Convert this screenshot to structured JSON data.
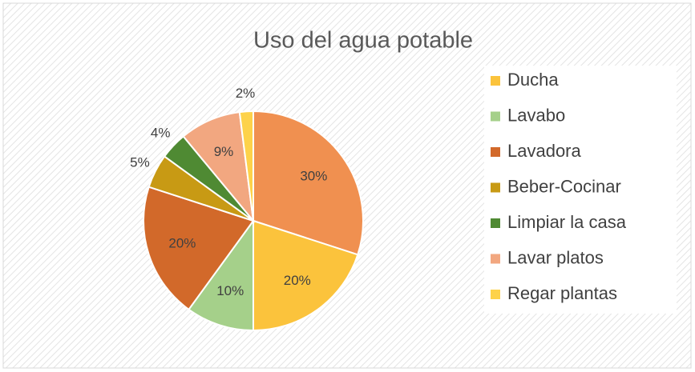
{
  "chart_data": {
    "type": "pie",
    "title": "Uso del agua potable",
    "categories": [
      null,
      "Ducha",
      "Lavabo",
      "Lavadora",
      "Beber-Cocinar",
      "Limpiar la casa",
      "Lavar platos",
      "Regar plantas"
    ],
    "values": [
      30,
      20,
      10,
      20,
      5,
      4,
      9,
      2
    ],
    "value_labels": [
      "30%",
      "20%",
      "10%",
      "20%",
      "5%",
      "4%",
      "9%",
      "2%"
    ],
    "colors": [
      "#f09050",
      "#fbc33c",
      "#a5d08a",
      "#d2692a",
      "#c89a14",
      "#4f8a33",
      "#f2a780",
      "#fdd24a"
    ],
    "legend": "right"
  }
}
